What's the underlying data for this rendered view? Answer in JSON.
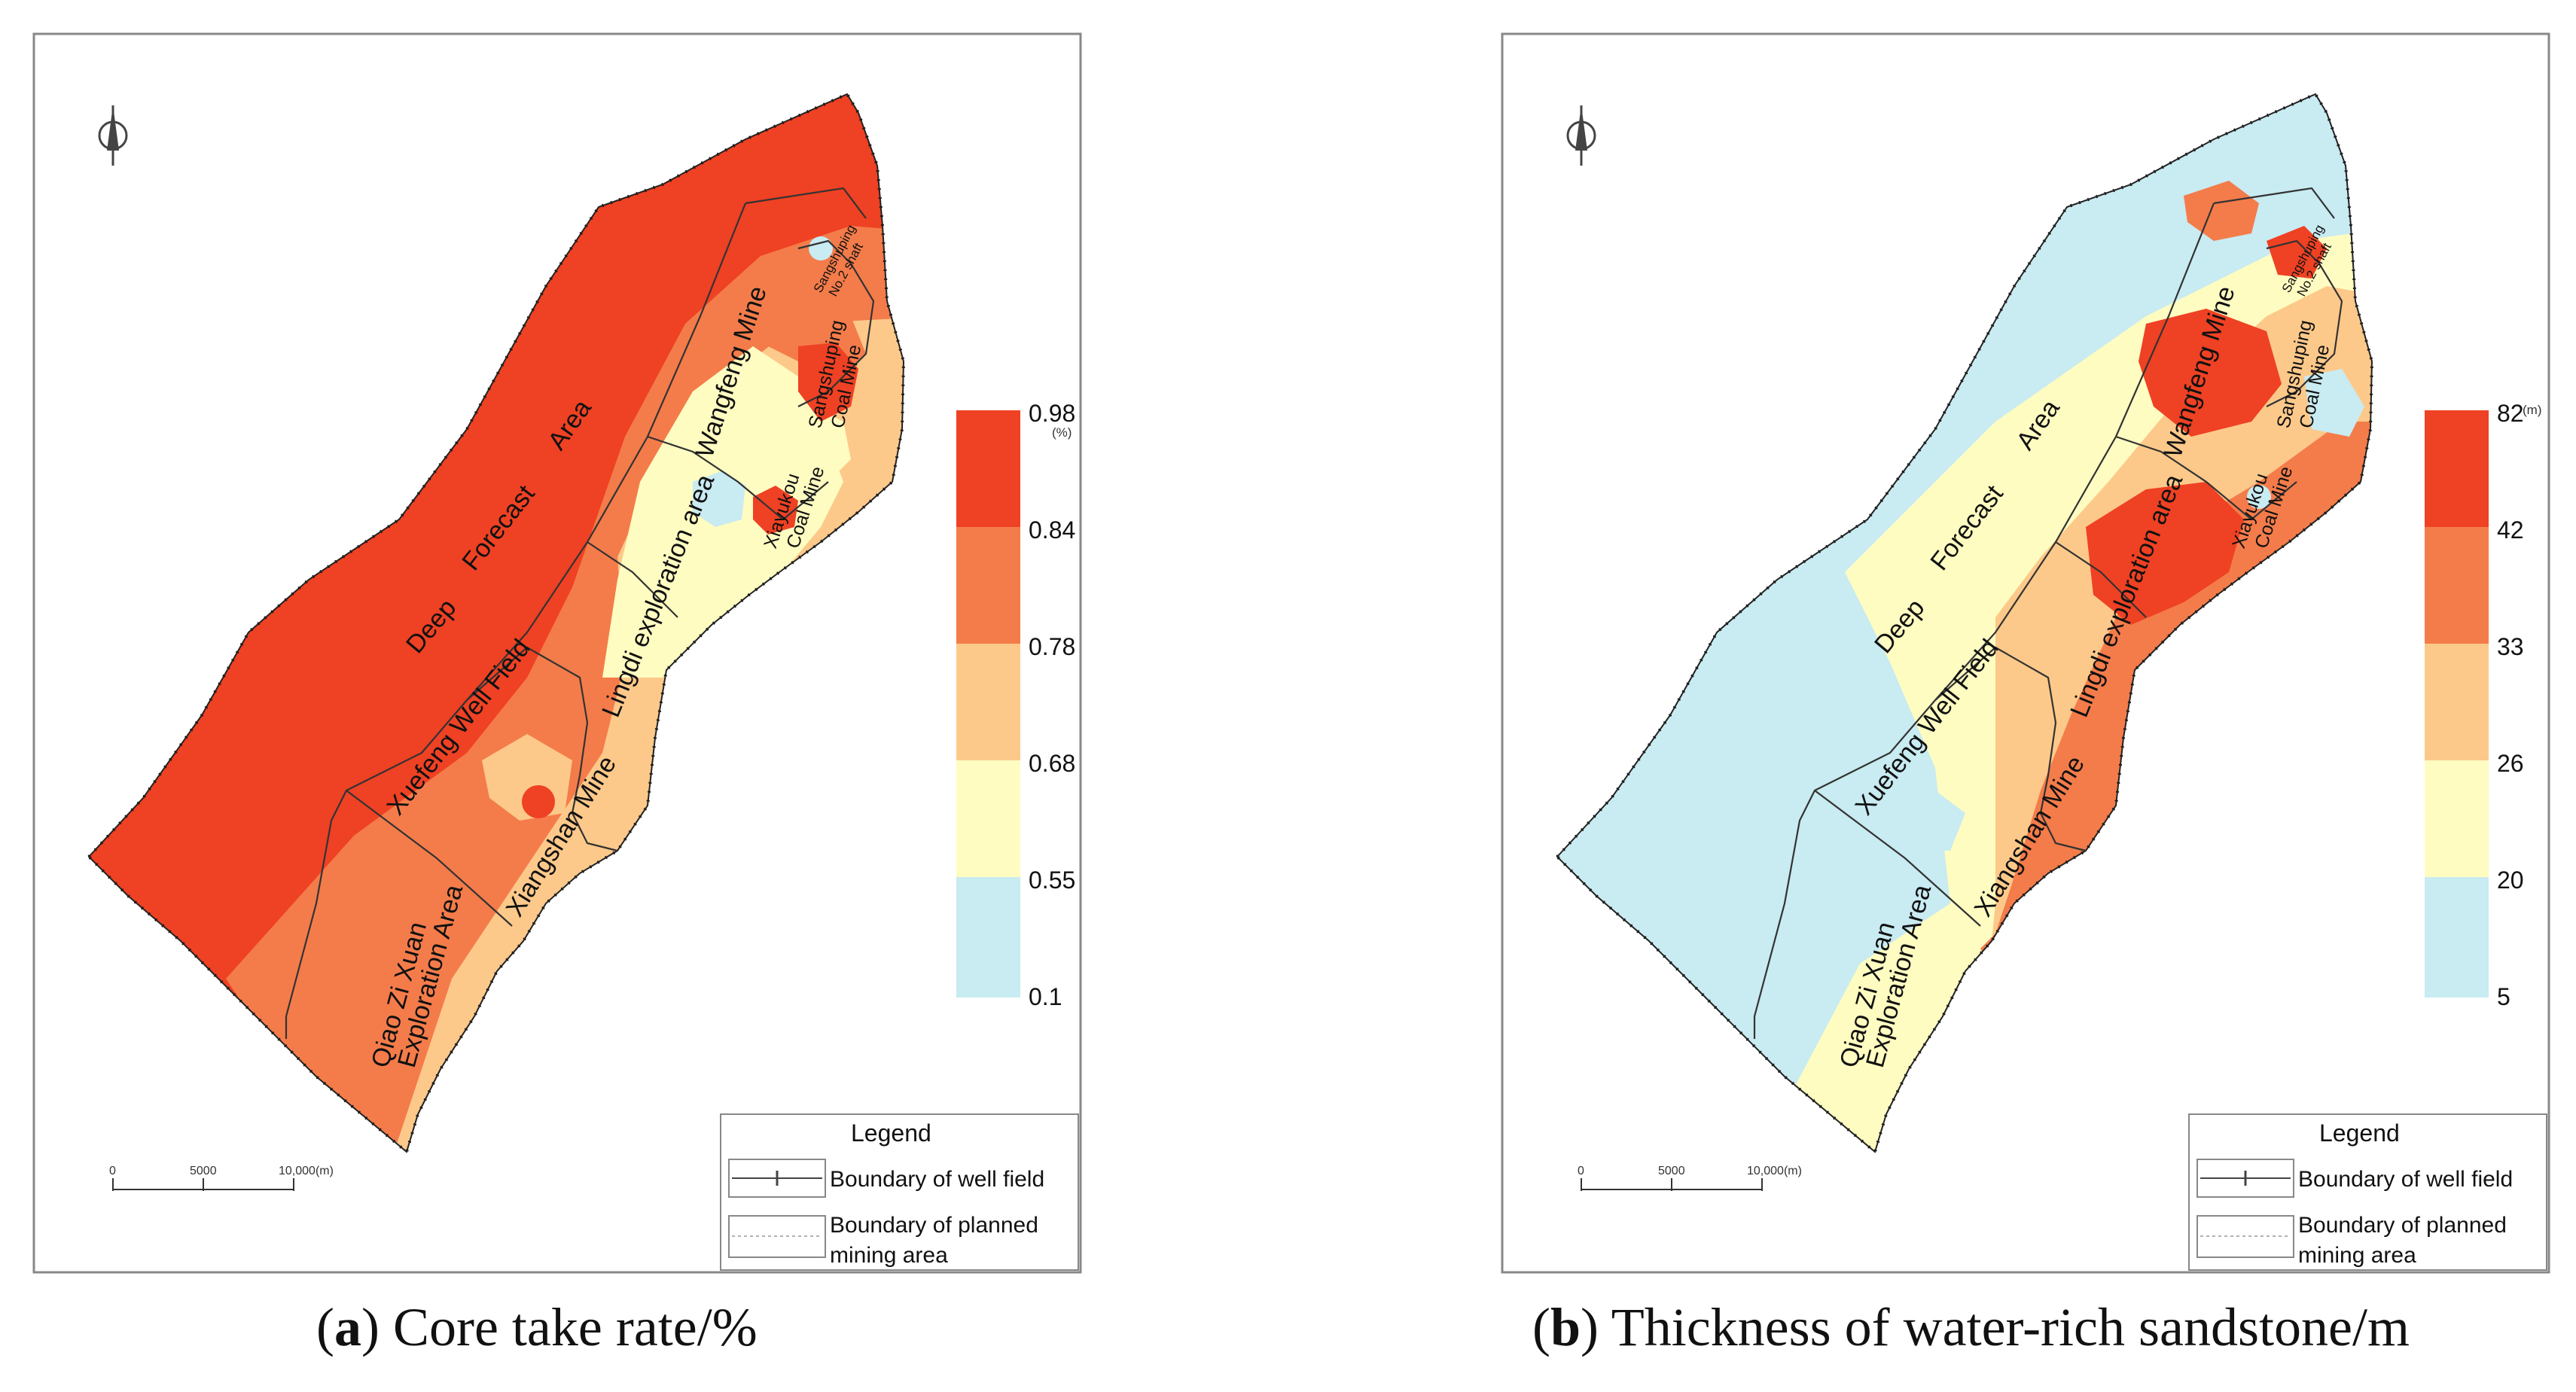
{
  "colors": {
    "c1": "#ef4123",
    "c2": "#f47c4a",
    "c3": "#fdc98a",
    "c4": "#fefcc1",
    "c5": "#c9ebf2",
    "frame": "#888888"
  },
  "panels": [
    {
      "letter": "a",
      "caption_rest": ") Core take rate/%",
      "unit": "(%)",
      "legend_values": [
        "0.98",
        "0.84",
        "0.78",
        "0.68",
        "0.55",
        "0.1"
      ]
    },
    {
      "letter": "b",
      "caption_rest": ") Thickness of water-rich sandstone/m",
      "unit": "(m)",
      "legend_values": [
        "82",
        "42",
        "33",
        "26",
        "20",
        "5"
      ]
    }
  ],
  "labels": {
    "deep": "Deep",
    "forecast": "Forecast",
    "area": "Area",
    "xuefeng": "Xuefeng Well Field",
    "lingdi": "Lingdi exploration area",
    "wangfeng": "Wangfeng Mine",
    "xiangshan": "Xiangshan Mine",
    "qiao1": "Qiao Zi Xuan",
    "qiao2": "Exploration Area",
    "xiayu1": "Xiayukou",
    "xiayu2": "Coal Mine",
    "sangshu1": "Sangshuping",
    "sangshu2": "Coal Mine",
    "no2a": "Sangshuping",
    "no2b": "No.2 shaft"
  },
  "legend": {
    "title": "Legend",
    "item1": "Boundary of well field",
    "item2a": "Boundary of planned",
    "item2b": "mining area"
  },
  "scalebar": {
    "t0": "0",
    "t1": "5000",
    "t2": "10,000(m)"
  },
  "caption_open": "("
}
